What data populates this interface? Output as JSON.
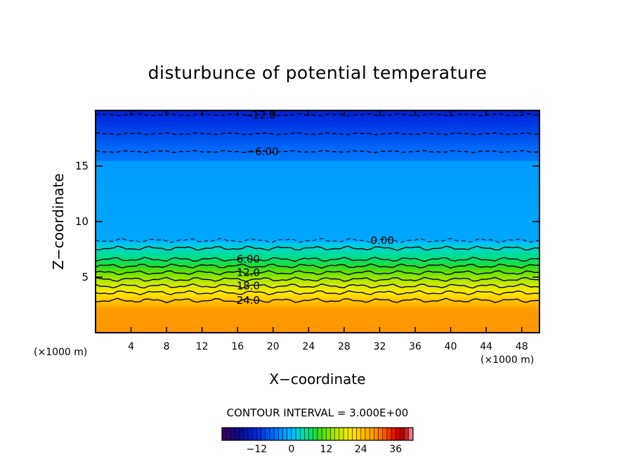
{
  "chart_data": {
    "type": "heatmap",
    "title": "disturbunce of potential temperature",
    "xlabel": "X−coordinate",
    "ylabel": "Z−coordinate",
    "x_unit_left": "(×1000 m)",
    "x_unit_right": "(×1000 m)",
    "xlim": [
      0,
      50
    ],
    "ylim": [
      0,
      20
    ],
    "x_ticks": [
      4,
      8,
      12,
      16,
      20,
      24,
      28,
      32,
      36,
      40,
      44,
      48
    ],
    "y_ticks": [
      5,
      10,
      15
    ],
    "contour_interval_text": "CONTOUR INTERVAL = 3.000E+00",
    "colorbar": {
      "min": -24,
      "max": 42,
      "tick_values": [
        -12,
        0,
        12,
        24,
        36
      ],
      "tick_labels": [
        "−12",
        "0",
        "12",
        "24",
        "36"
      ]
    },
    "contours": [
      {
        "level": -12,
        "label": "−12.0",
        "z": 19.6,
        "dashed": true,
        "label_x": 18.5
      },
      {
        "level": -9,
        "label": "",
        "z": 17.9,
        "dashed": true,
        "label_x": null
      },
      {
        "level": -6,
        "label": "−6.00",
        "z": 16.3,
        "dashed": true,
        "label_x": 18.8
      },
      {
        "level": 0,
        "label": "0.00",
        "z": 8.3,
        "dashed": true,
        "label_x": 32.3
      },
      {
        "level": 3,
        "label": "",
        "z": 7.6,
        "dashed": false,
        "label_x": null
      },
      {
        "level": 6,
        "label": "6.00",
        "z": 6.6,
        "dashed": false,
        "label_x": 17.2
      },
      {
        "level": 9,
        "label": "",
        "z": 6.0,
        "dashed": false,
        "label_x": null
      },
      {
        "level": 12,
        "label": "12.0",
        "z": 5.4,
        "dashed": false,
        "label_x": 17.2
      },
      {
        "level": 15,
        "label": "",
        "z": 4.8,
        "dashed": false,
        "label_x": null
      },
      {
        "level": 18,
        "label": "18.0",
        "z": 4.2,
        "dashed": false,
        "label_x": 17.2
      },
      {
        "level": 21,
        "label": "",
        "z": 3.6,
        "dashed": false,
        "label_x": null
      },
      {
        "level": 24,
        "label": "24.0",
        "z": 2.9,
        "dashed": false,
        "label_x": 17.2
      }
    ],
    "grid": false,
    "legend_placement": "bottom"
  }
}
